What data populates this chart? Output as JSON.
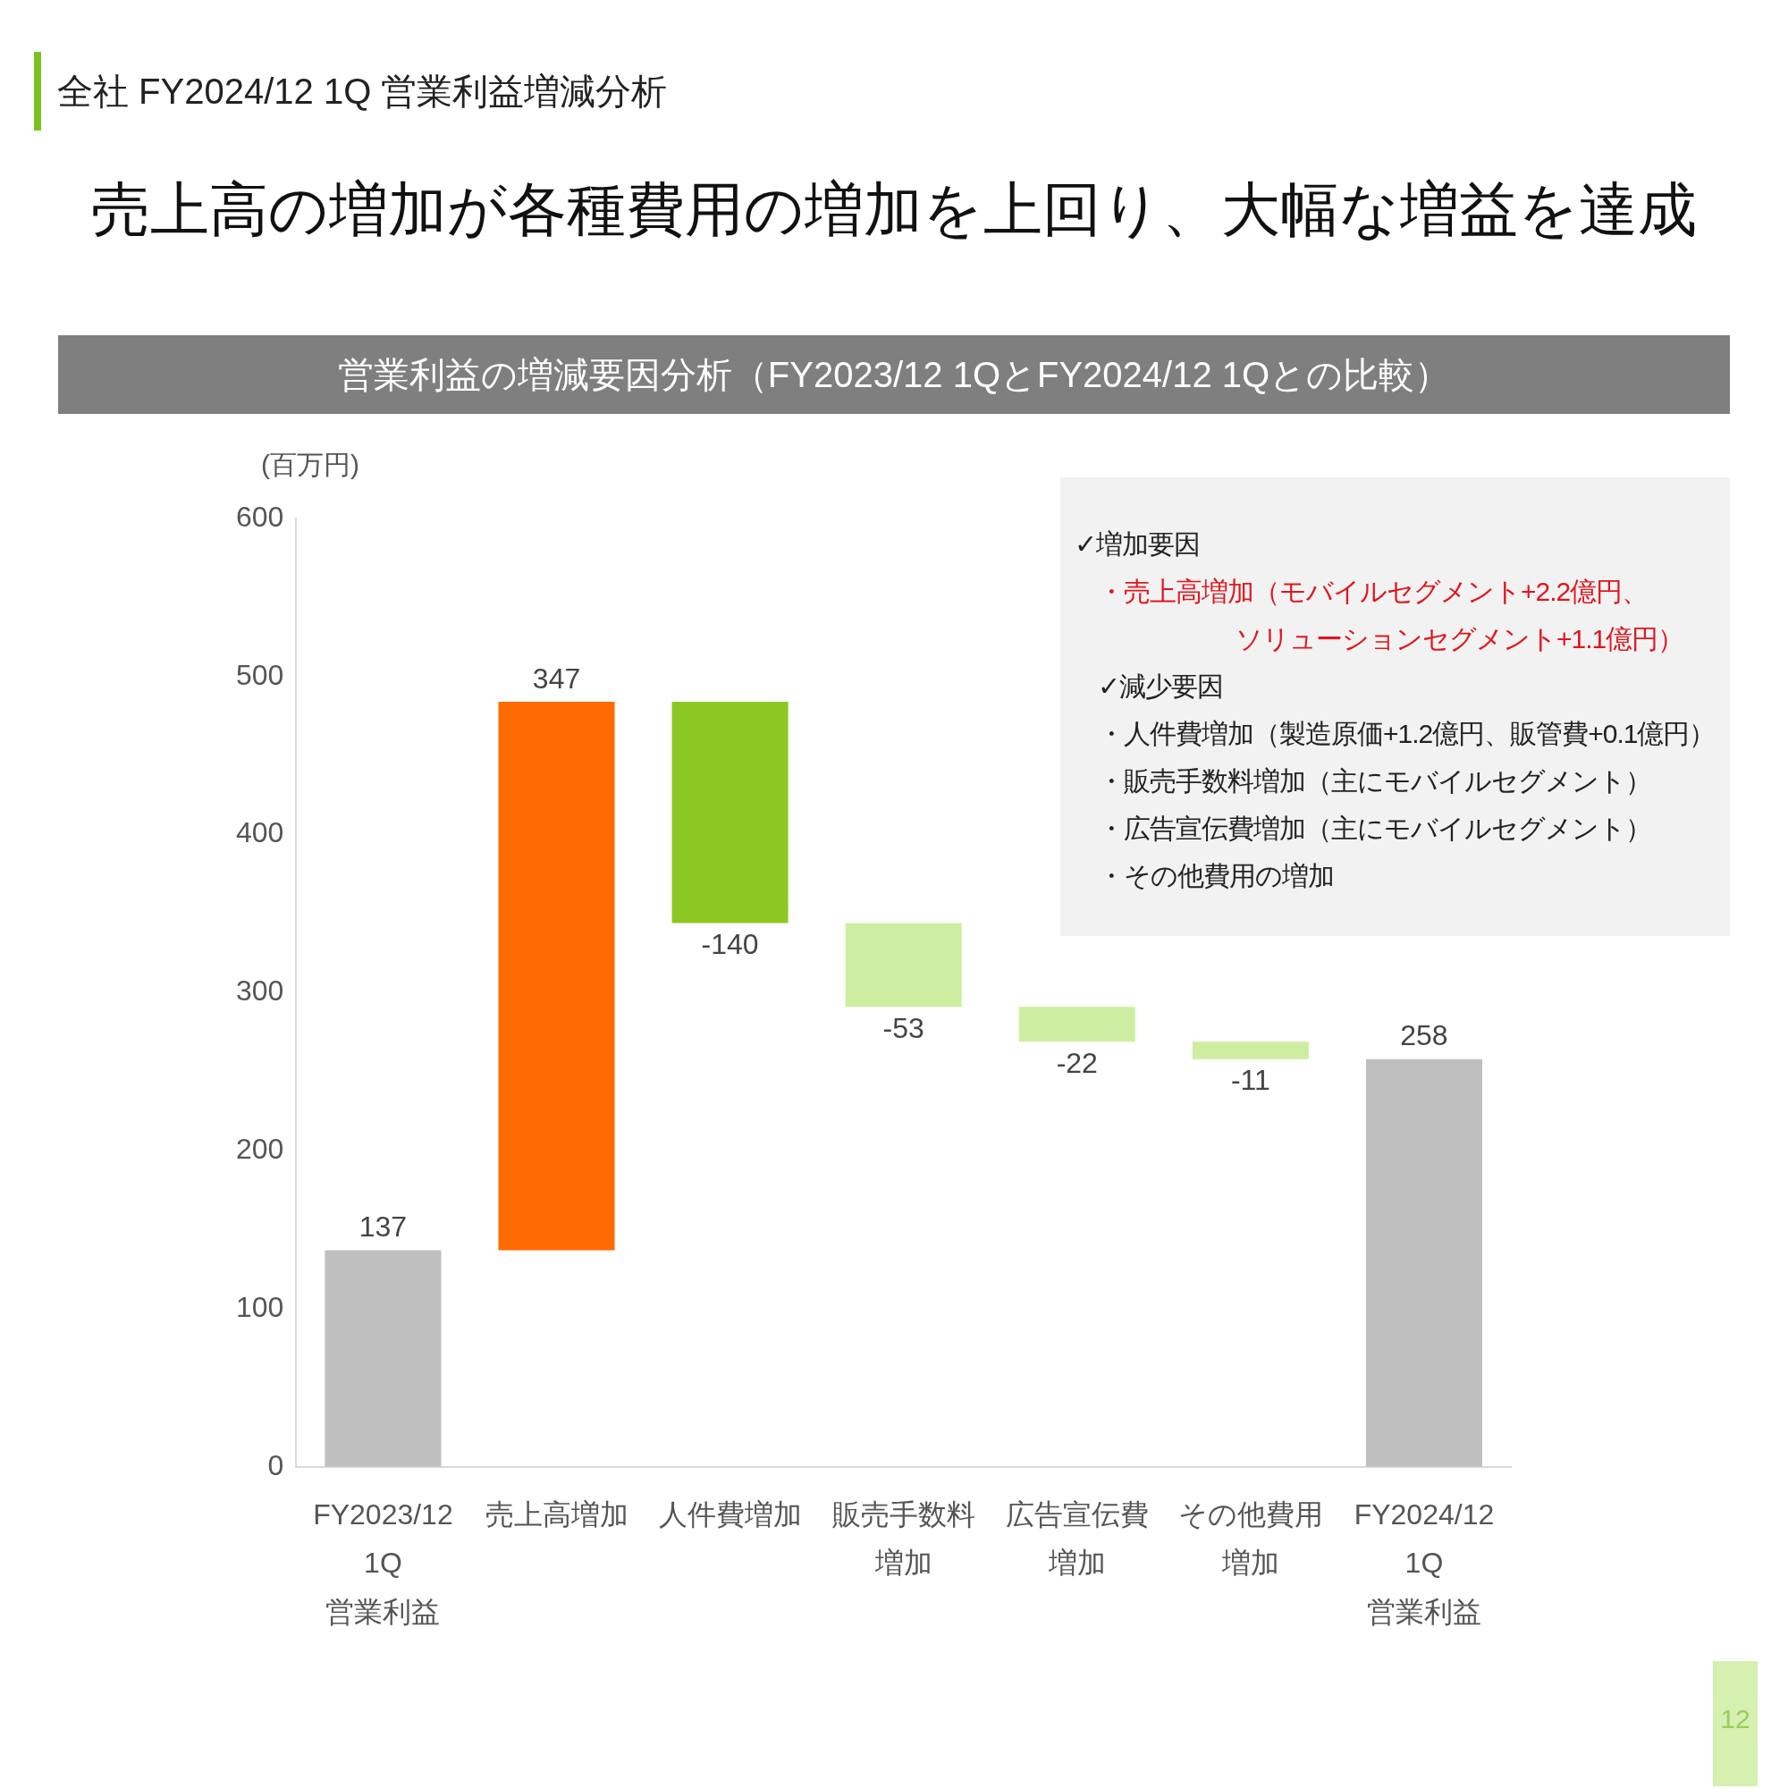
{
  "chart_data": {
    "type": "bar",
    "title": "売上高の増加が各種費用の増加を上回り、大幅な増益を達成",
    "subtitle": "営業利益の増減要因分析（FY2023/12 1QとFY2024/12 1Qとの比較）",
    "ylabel": "(百万円)",
    "annotations": [
      "全社 FY2024/12 1Q 営業利益増減分析",
      "✓増加要因",
      "・売上高増加（モバイルセグメント+2.2億円、",
      "ソリューションセグメント+1.1億円）",
      "✓減少要因",
      "・人件費増加（製造原価+1.2億円、販管費+0.1億円）",
      "・販売手数料増加（主にモバイルセグメント）",
      "・広告宣伝費増加（主にモバイルセグメント）",
      "・その他費用の増加",
      "12"
    ],
    "categories": [
      "FY2023/12\n1Q\n営業利益",
      "売上高増加",
      "人件費増加",
      "販売手数料増加",
      "広告宣伝費増加",
      "その他費用増加",
      "FY2024/12\n1Q\n営業利益"
    ],
    "values": [
      137,
      347,
      -140,
      -53,
      -22,
      -11,
      258
    ],
    "base": [
      0,
      137,
      484,
      344,
      291,
      269,
      0
    ],
    "colors": [
      "#bfbfbf",
      "#ff6a00",
      "#8cc823",
      "#cdeea0",
      "#cdeea0",
      "#cdeea0",
      "#bfbfbf"
    ],
    "ylim": [
      0,
      600
    ],
    "yticks": [
      0,
      100,
      200,
      300,
      400,
      500,
      600
    ],
    "grid": false,
    "data_labels": true,
    "legend": false
  }
}
